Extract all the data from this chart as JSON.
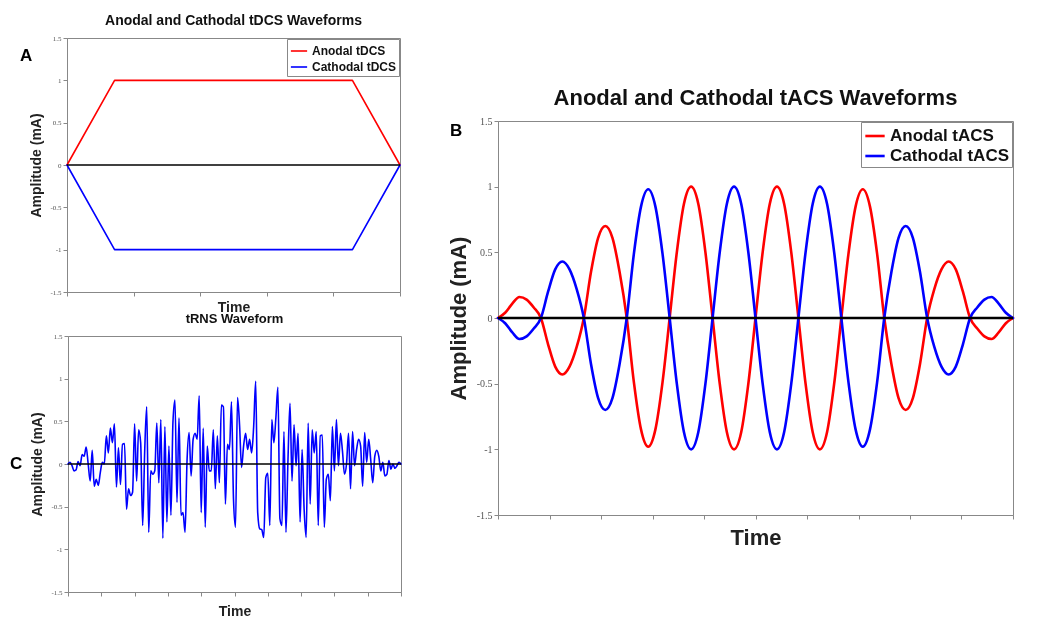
{
  "chart_data": [
    {
      "type": "line",
      "title": "Anodal and Cathodal tDCS Waveforms",
      "xlabel": "Time",
      "ylabel": "Amplitude (mA)",
      "annotations": [
        "A"
      ],
      "legend": "top right",
      "ylim": [
        -1.5,
        1.5
      ],
      "yticks": [
        -1.5,
        -1,
        -0.5,
        0,
        0.5,
        1,
        1.5
      ],
      "categories": [
        null,
        null,
        null,
        null,
        null,
        null,
        null,
        null
      ],
      "series": [
        {
          "name": "Anodal tDCS",
          "color": "#ff0000",
          "values": [
            0,
            1,
            1,
            1,
            1,
            1,
            1,
            0
          ]
        },
        {
          "name": "Cathodal tDCS",
          "color": "#0000ff",
          "values": [
            0,
            -1,
            -1,
            -1,
            -1,
            -1,
            -1,
            0
          ]
        }
      ],
      "ref_lines": [
        {
          "axis": "y",
          "value": 0,
          "color": "#000000"
        }
      ]
    },
    {
      "type": "line",
      "title": "Anodal and Cathodal tACS Waveforms",
      "xlabel": "Time",
      "ylabel": "Amplitude (mA)",
      "annotations": [
        "B"
      ],
      "legend": "top right",
      "ylim": [
        -1.5,
        1.5
      ],
      "yticks": [
        -1.5,
        -1,
        -0.5,
        0,
        0.5,
        1,
        1.5
      ],
      "categories": [
        null,
        null,
        null,
        null,
        null,
        null,
        null,
        null,
        null,
        null,
        null,
        null,
        null,
        null,
        null,
        null,
        null,
        null,
        null,
        null,
        null,
        null,
        null,
        null,
        null,
        null,
        null,
        null,
        null,
        null,
        null,
        null,
        null,
        null,
        null,
        null,
        null,
        null,
        null,
        null,
        null,
        null,
        null,
        null,
        null,
        null,
        null,
        null,
        null,
        null,
        null,
        null,
        null,
        null,
        null,
        null,
        null,
        null,
        null,
        null,
        null,
        null,
        null,
        null,
        null,
        null,
        null,
        null,
        null,
        null,
        null,
        null,
        null
      ],
      "series": [
        {
          "name": "Anodal tACS",
          "color": "#ff0000",
          "values": [
            0,
            0.04,
            0.11,
            0.16,
            0.14,
            0.08,
            0,
            -0.2,
            -0.37,
            -0.43,
            -0.37,
            -0.22,
            0,
            0.35,
            0.61,
            0.7,
            0.61,
            0.35,
            0,
            -0.49,
            -0.85,
            -0.98,
            -0.85,
            -0.49,
            0,
            0.5,
            0.87,
            1,
            0.87,
            0.5,
            0,
            -0.5,
            -0.87,
            -1,
            -0.87,
            -0.5,
            0,
            0.5,
            0.87,
            1,
            0.87,
            0.5,
            0,
            -0.5,
            -0.87,
            -1,
            -0.87,
            -0.5,
            0,
            0.49,
            0.85,
            0.98,
            0.85,
            0.49,
            0,
            -0.35,
            -0.61,
            -0.7,
            -0.61,
            -0.35,
            0,
            0.22,
            0.37,
            0.43,
            0.37,
            0.2,
            0,
            -0.08,
            -0.14,
            -0.16,
            -0.11,
            -0.04,
            0
          ]
        },
        {
          "name": "Cathodal tACS",
          "color": "#0000ff",
          "values": [
            0,
            -0.04,
            -0.11,
            -0.16,
            -0.14,
            -0.08,
            0,
            0.2,
            0.37,
            0.43,
            0.37,
            0.22,
            0,
            -0.35,
            -0.61,
            -0.7,
            -0.61,
            -0.35,
            0,
            0.49,
            0.85,
            0.98,
            0.85,
            0.49,
            0,
            -0.5,
            -0.87,
            -1,
            -0.87,
            -0.5,
            0,
            0.5,
            0.87,
            1,
            0.87,
            0.5,
            0,
            -0.5,
            -0.87,
            -1,
            -0.87,
            -0.5,
            0,
            0.5,
            0.87,
            1,
            0.87,
            0.5,
            0,
            -0.49,
            -0.85,
            -0.98,
            -0.85,
            -0.49,
            0,
            0.35,
            0.61,
            0.7,
            0.61,
            0.35,
            0,
            -0.22,
            -0.37,
            -0.43,
            -0.37,
            -0.2,
            0,
            0.08,
            0.14,
            0.16,
            0.11,
            0.04,
            0
          ]
        }
      ],
      "ref_lines": [
        {
          "axis": "y",
          "value": 0,
          "color": "#000000"
        }
      ]
    },
    {
      "type": "line",
      "title": "tRNS Waveform",
      "xlabel": "Time",
      "ylabel": "Amplitude (mA)",
      "annotations": [
        "C"
      ],
      "ylim": [
        -1.5,
        1.5
      ],
      "yticks": [
        -1.5,
        -1,
        -0.5,
        0,
        0.5,
        1,
        1.5
      ],
      "categories": [
        null,
        null,
        null,
        null,
        null,
        null,
        null,
        null,
        null,
        null,
        null,
        null,
        null,
        null,
        null,
        null,
        null,
        null,
        null,
        null,
        null,
        null,
        null,
        null,
        null,
        null,
        null,
        null,
        null,
        null,
        null,
        null,
        null,
        null,
        null,
        null,
        null,
        null,
        null,
        null,
        null,
        null,
        null,
        null,
        null,
        null,
        null,
        null,
        null,
        null,
        null,
        null,
        null,
        null,
        null,
        null,
        null,
        null,
        null,
        null,
        null,
        null,
        null,
        null,
        null,
        null,
        null,
        null,
        null,
        null,
        null,
        null,
        null,
        null,
        null,
        null,
        null,
        null,
        null,
        null,
        null,
        null,
        null,
        null,
        null,
        null,
        null,
        null,
        null,
        null,
        null,
        null,
        null,
        null,
        null,
        null,
        null,
        null,
        null,
        null,
        null,
        null,
        null,
        null,
        null,
        null,
        null,
        null,
        null,
        null,
        null,
        null,
        null,
        null,
        null,
        null,
        null,
        null,
        null,
        null,
        null,
        null,
        null,
        null,
        null,
        null,
        null,
        null,
        null,
        null,
        null,
        null,
        null,
        null,
        null,
        null,
        null,
        null,
        null,
        null,
        null,
        null,
        null,
        null,
        null,
        null,
        null,
        null,
        null,
        null,
        null,
        null,
        null,
        null,
        null,
        null,
        null,
        null,
        null,
        null,
        null,
        null,
        null,
        null,
        null,
        null
      ],
      "series": [
        {
          "color": "#0000ff",
          "values": [
            0,
            0.02,
            -0.02,
            -0.08,
            -0.07,
            0.03,
            -0.02,
            0.11,
            0.09,
            0.2,
            0,
            -0.2,
            0.16,
            -0.26,
            -0.18,
            -0.25,
            -0.1,
            0.02,
            0,
            0.33,
            0.13,
            0.42,
            0.25,
            0.47,
            -0.27,
            0.19,
            -0.24,
            0.23,
            0.24,
            -0.53,
            -0.29,
            -0.37,
            -0.33,
            0.47,
            -0.2,
            0.4,
            0.25,
            -0.72,
            0.15,
            0.67,
            -0.8,
            -0.08,
            -0.12,
            -0.08,
            0.48,
            -0.22,
            0.52,
            -0.87,
            0.44,
            -0.68,
            0.21,
            -0.6,
            0.49,
            0.75,
            -0.45,
            0.54,
            -0.6,
            -0.57,
            -0.8,
            0.05,
            0.37,
            -0.14,
            0.29,
            0.36,
            0.29,
            0.8,
            -0.57,
            0.42,
            -0.74,
            0.21,
            -0.08,
            -0.08,
            0.4,
            -0.29,
            0.33,
            -0.22,
            0.69,
            0.67,
            -0.47,
            0.23,
            0.17,
            0.73,
            -0.41,
            -0.74,
            0.78,
            0.46,
            -0.04,
            0.21,
            0.36,
            0.17,
            0.29,
            0.13,
            0.44,
            0.97,
            -0.57,
            -0.76,
            -0.77,
            -0.86,
            -0.16,
            -0.11,
            -0.72,
            0.52,
            0.25,
            0.54,
            0.9,
            -0.64,
            -0.72,
            0.38,
            -0.8,
            0.05,
            0.71,
            -0.2,
            0.46,
            -0.02,
            0.36,
            -0.68,
            0.17,
            -0.53,
            -0.86,
            0.48,
            -0.47,
            0.4,
            0.13,
            0.38,
            -0.72,
            0.33,
            0.34,
            -0.74,
            -0.18,
            -0.12,
            -0.43,
            0.44,
            -0.08,
            0.52,
            -0.02,
            0.36,
            0.15,
            -0.12,
            0,
            0.36,
            -0.29,
            0.38,
            -0.02,
            0.17,
            0.29,
            0.21,
            -0.26,
            0.37,
            0.02,
            0.29,
            0.05,
            -0.22,
            0.09,
            0.16,
            0.09,
            -0.08,
            0.02,
            -0.14,
            -0.12,
            0.04,
            -0.06,
            0,
            -0.05,
            -0.02,
            0.02,
            0
          ]
        }
      ],
      "ref_lines": [
        {
          "axis": "y",
          "value": 0,
          "color": "#000000"
        }
      ]
    }
  ]
}
